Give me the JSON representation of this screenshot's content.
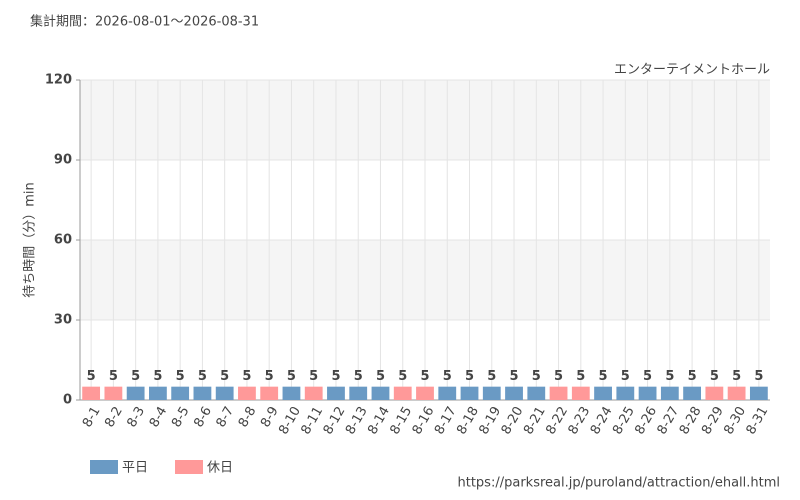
{
  "chart_data": {
    "type": "bar",
    "title": "集計期間：2026-08-01～2026-08-31",
    "subtitle": "エンターテイメントホール",
    "y_label": "待ち時間（分）min",
    "source": "https://parksreal.jp/puroland/attraction/ehall.html",
    "categories": [
      "8-1",
      "8-2",
      "8-3",
      "8-4",
      "8-5",
      "8-6",
      "8-7",
      "8-8",
      "8-9",
      "8-10",
      "8-11",
      "8-12",
      "8-13",
      "8-14",
      "8-15",
      "8-16",
      "8-17",
      "8-18",
      "8-19",
      "8-20",
      "8-21",
      "8-22",
      "8-23",
      "8-24",
      "8-25",
      "8-26",
      "8-27",
      "8-28",
      "8-29",
      "8-30",
      "8-31"
    ],
    "series": [
      {
        "name": "平日",
        "color": "#6a9ac4",
        "label_color": "#333333",
        "values": [
          null,
          null,
          5,
          5,
          5,
          5,
          5,
          null,
          null,
          5,
          null,
          5,
          5,
          5,
          null,
          null,
          5,
          5,
          5,
          5,
          5,
          null,
          null,
          5,
          5,
          5,
          5,
          5,
          null,
          null,
          5
        ]
      },
      {
        "name": "休日",
        "color": "#ff9999",
        "label_color": "#ff8080",
        "values": [
          5,
          5,
          null,
          null,
          null,
          null,
          null,
          5,
          5,
          null,
          5,
          null,
          null,
          null,
          5,
          5,
          null,
          null,
          null,
          null,
          null,
          5,
          5,
          null,
          null,
          null,
          null,
          null,
          5,
          5,
          null
        ]
      }
    ],
    "ylim": [
      0,
      120
    ],
    "yticks": [
      0,
      30,
      60,
      90,
      120
    ],
    "grid": true
  }
}
